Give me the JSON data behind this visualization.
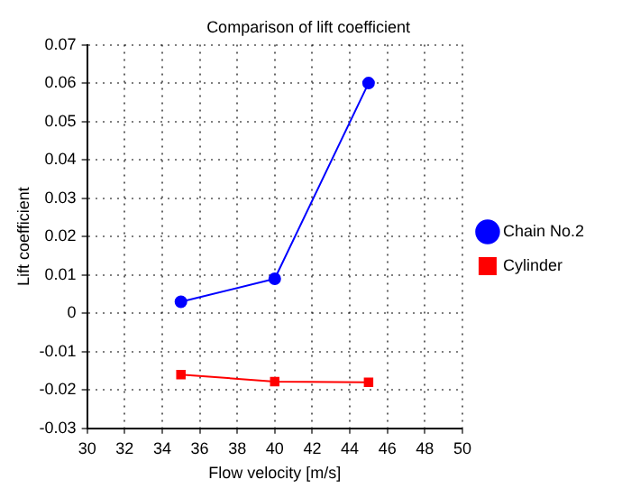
{
  "chart_data": {
    "type": "line",
    "title": "Comparison of lift coefficient",
    "xlabel": "Flow velocity [m/s]",
    "ylabel": "Lift coefficient",
    "x": [
      35,
      40,
      45
    ],
    "series": [
      {
        "name": "Chain No.2",
        "color": "#0000ff",
        "values": [
          0.003,
          0.009,
          0.06
        ],
        "marker": "circle"
      },
      {
        "name": "Cylinder",
        "color": "#ff0000",
        "values": [
          -0.016,
          -0.0178,
          -0.018
        ],
        "marker": "square"
      }
    ],
    "xlim": [
      30,
      50
    ],
    "xticks": [
      30,
      32,
      34,
      36,
      38,
      40,
      42,
      44,
      46,
      48,
      50
    ],
    "ylim": [
      -0.03,
      0.07
    ],
    "yticks": [
      -0.03,
      -0.02,
      -0.01,
      0,
      0.01,
      0.02,
      0.03,
      0.04,
      0.05,
      0.06,
      0.07
    ],
    "grid": true,
    "legend": "right",
    "line_style": "solid"
  }
}
